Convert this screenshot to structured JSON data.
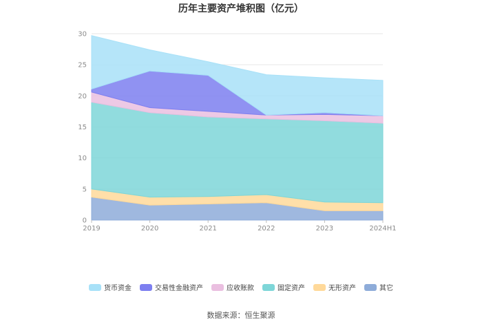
{
  "source_text": "数据来源：恒生聚源",
  "chart_data": {
    "type": "area",
    "stacked": true,
    "title": "历年主要资产堆积图（亿元）",
    "categories": [
      "2019",
      "2020",
      "2021",
      "2022",
      "2023",
      "2024H1"
    ],
    "ylim": [
      0,
      30
    ],
    "yticks": [
      0,
      5,
      10,
      15,
      20,
      25,
      30
    ],
    "grid": true,
    "legend_position": "bottom",
    "series": [
      {
        "name": "其它",
        "color": "#8eacd9",
        "values": [
          3.7,
          2.4,
          2.6,
          2.8,
          1.5,
          1.5
        ]
      },
      {
        "name": "无形资产",
        "color": "#ffd99a",
        "values": [
          1.3,
          1.3,
          1.2,
          1.3,
          1.4,
          1.3
        ]
      },
      {
        "name": "固定资产",
        "color": "#7ed6d8",
        "values": [
          14.0,
          13.6,
          12.8,
          12.2,
          13.1,
          12.8
        ]
      },
      {
        "name": "应收账款",
        "color": "#eabfe0",
        "values": [
          1.6,
          0.8,
          0.9,
          0.6,
          1.0,
          1.2
        ]
      },
      {
        "name": "交易性金融资产",
        "color": "#7d7ff0",
        "values": [
          0.5,
          5.9,
          5.8,
          0.0,
          0.3,
          0.0
        ]
      },
      {
        "name": "货币资金",
        "color": "#a8e1f8",
        "values": [
          8.6,
          3.4,
          2.2,
          6.5,
          5.6,
          5.7
        ]
      }
    ],
    "legend_order": [
      "货币资金",
      "交易性金融资产",
      "应收账款",
      "固定资产",
      "无形资产",
      "其它"
    ]
  }
}
